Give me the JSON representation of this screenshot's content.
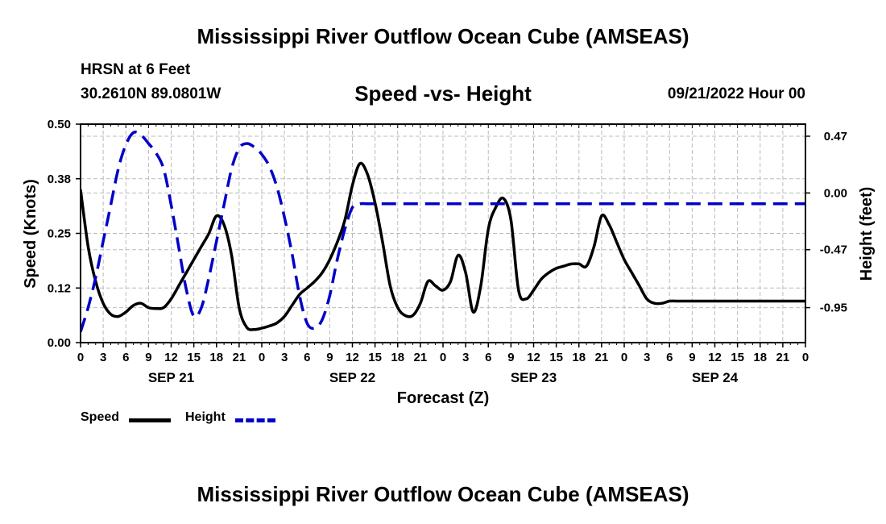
{
  "header": {
    "title": "Mississippi River Outflow Ocean Cube (AMSEAS)",
    "station": "HRSN at 6 Feet",
    "coordinates": "30.2610N  89.0801W",
    "subtitle": "Speed -vs- Height",
    "datetime": "09/21/2022 Hour 00"
  },
  "footer": {
    "title": "Mississippi River Outflow Ocean Cube (AMSEAS)"
  },
  "colors": {
    "speed": "#000000",
    "height": "#0000c8",
    "grid": "#bbbbbb"
  },
  "chart_data": {
    "type": "line",
    "title": "Speed -vs- Height",
    "xlabel": "Forecast (Z)",
    "ylabel": "Speed (Knots)",
    "y2label": "Height (feet)",
    "xlim": [
      0,
      96
    ],
    "ylim": [
      0,
      0.5
    ],
    "y2lim": [
      -1.24,
      0.57
    ],
    "grid": true,
    "legend_position": "bottom-left",
    "x_tick_values": [
      0,
      3,
      6,
      9,
      12,
      15,
      18,
      21,
      24,
      27,
      30,
      33,
      36,
      39,
      42,
      45,
      48,
      51,
      54,
      57,
      60,
      63,
      66,
      69,
      72,
      75,
      78,
      81,
      84,
      87,
      90,
      93,
      96
    ],
    "x_tick_labels": [
      "0",
      "3",
      "6",
      "9",
      "12",
      "15",
      "18",
      "21",
      "0",
      "3",
      "6",
      "9",
      "12",
      "15",
      "18",
      "21",
      "0",
      "3",
      "6",
      "9",
      "12",
      "15",
      "18",
      "21",
      "0",
      "3",
      "6",
      "9",
      "12",
      "15",
      "18",
      "21",
      "0"
    ],
    "day_labels": [
      {
        "label": "SEP 21",
        "at": 12
      },
      {
        "label": "SEP 22",
        "at": 36
      },
      {
        "label": "SEP 23",
        "at": 60
      },
      {
        "label": "SEP 24",
        "at": 84
      }
    ],
    "y_ticks": [
      0.0,
      0.125,
      0.25,
      0.375,
      0.5
    ],
    "y_tick_labels": [
      "0.00",
      "0.12",
      "0.25",
      "0.38",
      "0.50"
    ],
    "y2_ticks": [
      0.47,
      0.0,
      -0.47,
      -0.95
    ],
    "y2_tick_labels": [
      "0.47",
      "0.00",
      "-0.47",
      "-0.95"
    ],
    "series": [
      {
        "name": "Speed",
        "axis": "left",
        "style": "solid",
        "x": [
          0,
          1,
          2,
          3,
          4,
          5,
          6,
          7,
          8,
          9,
          10,
          11,
          12,
          13,
          14,
          15,
          16,
          17,
          18,
          19,
          20,
          21,
          22,
          23,
          24,
          25,
          26,
          27,
          28,
          29,
          30,
          31,
          32,
          33,
          34,
          35,
          36,
          37,
          38,
          39,
          40,
          41,
          42,
          43,
          44,
          45,
          46,
          47,
          48,
          49,
          50,
          51,
          52,
          53,
          54,
          55,
          56,
          57,
          58,
          59,
          60,
          61,
          62,
          63,
          64,
          65,
          66,
          67,
          68,
          69,
          70,
          71,
          72,
          73,
          74,
          75,
          76,
          77,
          78,
          79,
          80,
          81,
          82,
          83,
          84,
          85,
          86,
          87,
          88,
          89,
          90,
          91,
          92,
          93,
          94,
          95,
          96
        ],
        "values": [
          0.35,
          0.22,
          0.14,
          0.09,
          0.065,
          0.06,
          0.07,
          0.085,
          0.09,
          0.08,
          0.078,
          0.08,
          0.1,
          0.13,
          0.16,
          0.19,
          0.22,
          0.25,
          0.29,
          0.27,
          0.2,
          0.08,
          0.035,
          0.03,
          0.033,
          0.038,
          0.045,
          0.06,
          0.085,
          0.11,
          0.125,
          0.14,
          0.16,
          0.19,
          0.23,
          0.28,
          0.36,
          0.41,
          0.385,
          0.32,
          0.23,
          0.13,
          0.08,
          0.062,
          0.062,
          0.09,
          0.14,
          0.13,
          0.12,
          0.14,
          0.2,
          0.16,
          0.07,
          0.13,
          0.26,
          0.31,
          0.33,
          0.28,
          0.12,
          0.1,
          0.12,
          0.145,
          0.16,
          0.17,
          0.175,
          0.18,
          0.18,
          0.175,
          0.22,
          0.29,
          0.27,
          0.23,
          0.19,
          0.16,
          0.13,
          0.1,
          0.09,
          0.09,
          0.095,
          0.095,
          0.095,
          0.095,
          0.095,
          0.095,
          0.095,
          0.095,
          0.095,
          0.095,
          0.095,
          0.095,
          0.095,
          0.095,
          0.095,
          0.095,
          0.095,
          0.095,
          0.095
        ]
      },
      {
        "name": "Height",
        "axis": "right",
        "style": "dashed",
        "x": [
          0,
          1,
          2,
          3,
          4,
          5,
          6,
          7,
          8,
          9,
          10,
          11,
          12,
          13,
          14,
          15,
          16,
          17,
          18,
          19,
          20,
          21,
          22,
          23,
          24,
          25,
          26,
          27,
          28,
          29,
          30,
          31,
          32,
          33,
          34,
          35,
          36,
          37,
          38,
          39,
          40,
          41,
          42,
          43,
          44,
          45,
          46,
          47,
          48,
          49,
          50,
          51,
          52,
          53,
          54,
          55,
          56,
          57,
          58,
          59,
          60,
          61,
          62,
          63,
          64,
          65,
          66,
          67,
          68,
          69,
          70,
          71,
          72,
          73,
          74,
          75,
          76,
          77,
          78,
          79,
          80,
          81,
          82,
          83,
          84,
          85,
          86,
          87,
          88,
          89,
          90,
          91,
          92,
          93,
          94,
          95,
          96
        ],
        "values": [
          -1.15,
          -0.95,
          -0.7,
          -0.4,
          -0.1,
          0.2,
          0.4,
          0.5,
          0.48,
          0.41,
          0.33,
          0.2,
          -0.1,
          -0.45,
          -0.8,
          -1.02,
          -0.95,
          -0.7,
          -0.4,
          -0.1,
          0.2,
          0.37,
          0.41,
          0.38,
          0.32,
          0.22,
          0.05,
          -0.2,
          -0.5,
          -0.85,
          -1.08,
          -1.12,
          -1.05,
          -0.85,
          -0.55,
          -0.3,
          -0.12,
          -0.09,
          -0.09,
          -0.09,
          -0.09,
          -0.09,
          -0.09,
          -0.09,
          -0.09,
          -0.09,
          -0.09,
          -0.09,
          -0.09,
          -0.09,
          -0.09,
          -0.09,
          -0.09,
          -0.09,
          -0.09,
          -0.09,
          -0.09,
          -0.09,
          -0.09,
          -0.09,
          -0.09,
          -0.09,
          -0.09,
          -0.09,
          -0.09,
          -0.09,
          -0.09,
          -0.09,
          -0.09,
          -0.09,
          -0.09,
          -0.09,
          -0.09,
          -0.09,
          -0.09,
          -0.09,
          -0.09,
          -0.09,
          -0.09,
          -0.09,
          -0.09,
          -0.09,
          -0.09,
          -0.09,
          -0.09,
          -0.09,
          -0.09,
          -0.09,
          -0.09,
          -0.09,
          -0.09,
          -0.09,
          -0.09,
          -0.09,
          -0.09,
          -0.09,
          -0.09
        ]
      }
    ]
  }
}
